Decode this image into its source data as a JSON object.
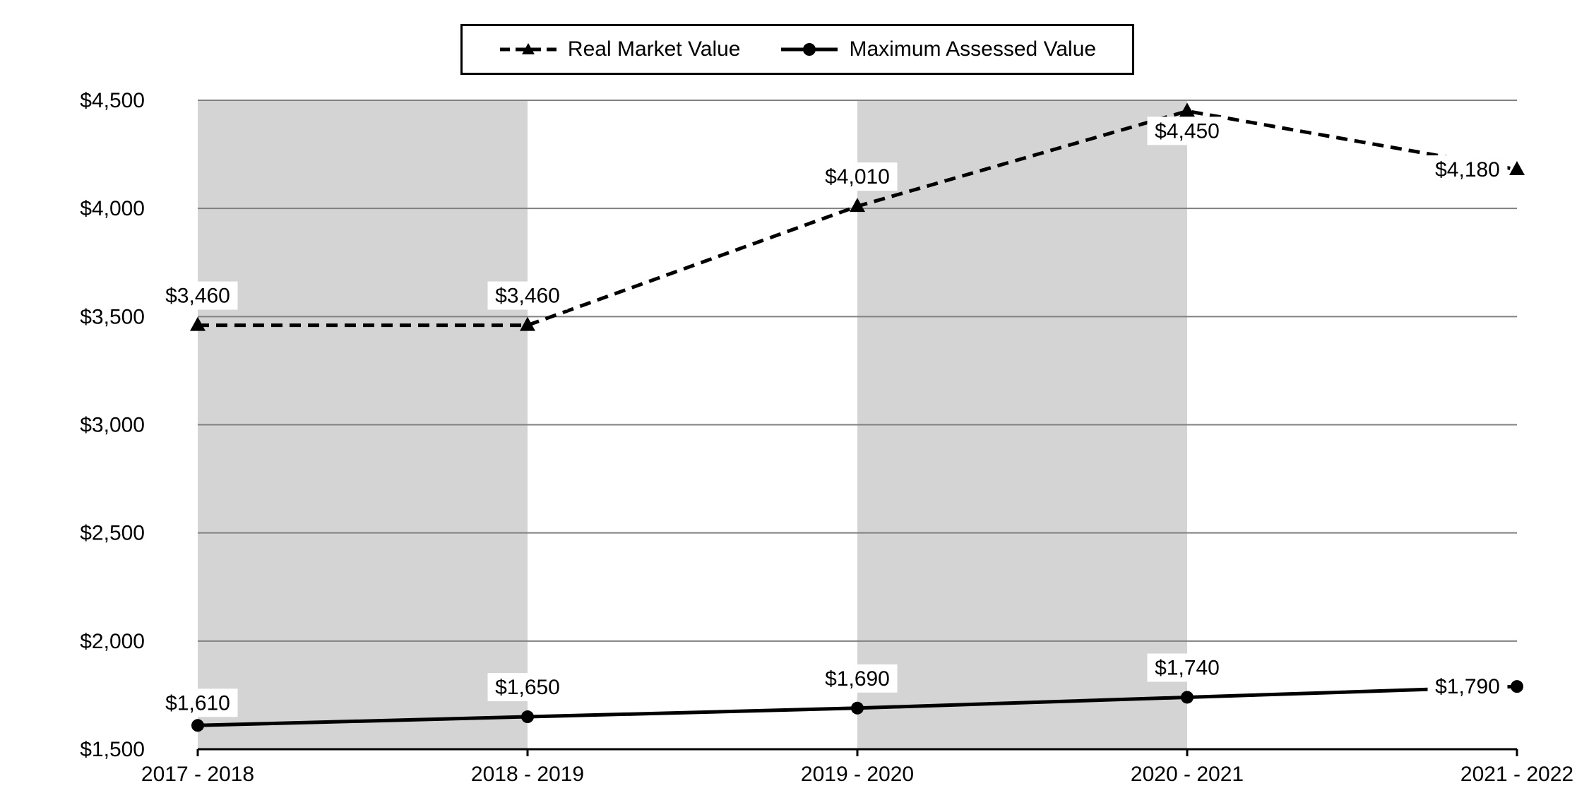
{
  "chart_data": {
    "type": "line",
    "categories": [
      "2017 - 2018",
      "2018 - 2019",
      "2019 - 2020",
      "2020 - 2021",
      "2021 - 2022"
    ],
    "series": [
      {
        "name": "Real Market Value",
        "values": [
          3460,
          3460,
          4010,
          4450,
          4180
        ],
        "labels": [
          "$3,460",
          "$3,460",
          "$4,010",
          "$4,450",
          "$4,180"
        ],
        "style": "dashed",
        "marker": "triangle"
      },
      {
        "name": "Maximum Assessed Value",
        "values": [
          1610,
          1650,
          1690,
          1740,
          1790
        ],
        "labels": [
          "$1,610",
          "$1,650",
          "$1,690",
          "$1,740",
          "$1,790"
        ],
        "style": "solid",
        "marker": "circle"
      }
    ],
    "y_ticks": [
      1500,
      2000,
      2500,
      3000,
      3500,
      4000,
      4500
    ],
    "y_tick_labels": [
      "$1,500",
      "$2,000",
      "$2,500",
      "$3,000",
      "$3,500",
      "$4,000",
      "$4,500"
    ],
    "ylim": [
      1500,
      4500
    ],
    "grid": true,
    "shaded_bands": [
      [
        0,
        1
      ],
      [
        2,
        3
      ]
    ],
    "legend_position": "top-center",
    "colors": {
      "line": "#000000",
      "band": "#d4d4d4",
      "grid": "#808080"
    }
  }
}
